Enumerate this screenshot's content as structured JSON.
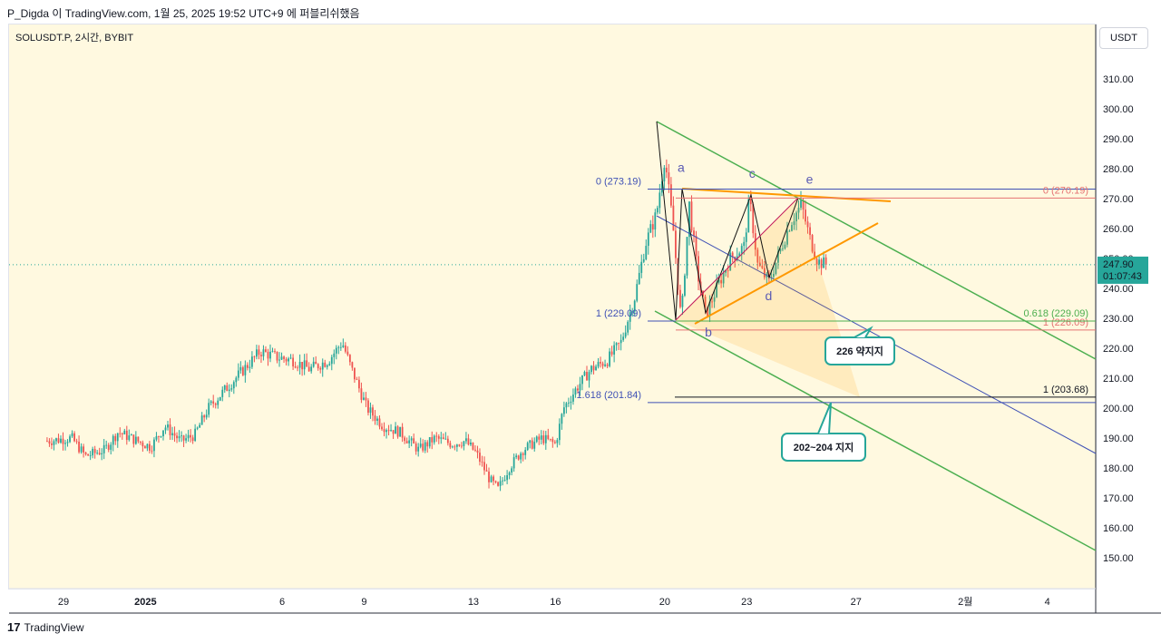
{
  "header": {
    "text": "P_Digda 이 TradingView.com, 1월 25, 2025 19:52 UTC+9 에 퍼블리쉬했음"
  },
  "symbol": "SOLUSDT.P, 2시간, BYBIT",
  "currency": "USDT",
  "footer": {
    "brand": "TradingView",
    "logo_glyph": "17"
  },
  "price_box": {
    "price": "247.90",
    "timer": "01:07:43",
    "color": "#26a69a"
  },
  "colors": {
    "up": "#26a69a",
    "down": "#ef5350",
    "bg": "#fff9e0",
    "channel": "#4caf50",
    "fib_blue": "#3f51b5",
    "fib_red": "#e57373",
    "orange": "#ff9800",
    "callout": "#26a69a"
  },
  "chart_data": {
    "type": "candlestick",
    "y_axis": {
      "min": 140,
      "max": 320,
      "ticks": [
        "150.00",
        "160.00",
        "170.00",
        "180.00",
        "190.00",
        "200.00",
        "210.00",
        "220.00",
        "230.00",
        "240.00",
        "250.00",
        "260.00",
        "270.00",
        "280.00",
        "290.00",
        "300.00",
        "310.00"
      ]
    },
    "x_axis": {
      "ticks": [
        {
          "label": "29",
          "day": 0
        },
        {
          "label": "2025",
          "day": 3
        },
        {
          "label": "6",
          "day": 8
        },
        {
          "label": "9",
          "day": 11
        },
        {
          "label": "13",
          "day": 15
        },
        {
          "label": "16",
          "day": 18
        },
        {
          "label": "20",
          "day": 22
        },
        {
          "label": "23",
          "day": 25
        },
        {
          "label": "27",
          "day": 29
        },
        {
          "label": "2월",
          "day": 33
        },
        {
          "label": "4",
          "day": 36
        }
      ]
    },
    "close_path": [
      [
        -0.6,
        189
      ],
      [
        0.3,
        190
      ],
      [
        0.8,
        184
      ],
      [
        1.5,
        186
      ],
      [
        2,
        192
      ],
      [
        2.7,
        189
      ],
      [
        3.2,
        187
      ],
      [
        3.7,
        194
      ],
      [
        4.3,
        189
      ],
      [
        4.8,
        191
      ],
      [
        5.3,
        200
      ],
      [
        6,
        207
      ],
      [
        6.7,
        214
      ],
      [
        7.2,
        219
      ],
      [
        7.8,
        217
      ],
      [
        8.4,
        216
      ],
      [
        9,
        213
      ],
      [
        9.7,
        216
      ],
      [
        10.2,
        222
      ],
      [
        10.5,
        214
      ],
      [
        11.1,
        200
      ],
      [
        11.7,
        194
      ],
      [
        12.3,
        192
      ],
      [
        13,
        186
      ],
      [
        13.6,
        190
      ],
      [
        14.2,
        188
      ],
      [
        14.7,
        189
      ],
      [
        15.1,
        185
      ],
      [
        15.6,
        176
      ],
      [
        15.9,
        173
      ],
      [
        16.3,
        180
      ],
      [
        16.8,
        186
      ],
      [
        17.5,
        190
      ],
      [
        18,
        188
      ],
      [
        18.3,
        200
      ],
      [
        18.8,
        207
      ],
      [
        19.3,
        213
      ],
      [
        19.9,
        216
      ],
      [
        20.4,
        222
      ],
      [
        20.9,
        237
      ],
      [
        21.3,
        255
      ],
      [
        21.7,
        265
      ],
      [
        22,
        284
      ],
      [
        22.3,
        261
      ],
      [
        22.6,
        229
      ],
      [
        22.9,
        268
      ],
      [
        23.2,
        245
      ],
      [
        23.5,
        231
      ],
      [
        23.9,
        240
      ],
      [
        24.4,
        250
      ],
      [
        24.9,
        254
      ],
      [
        25.1,
        270
      ],
      [
        25.4,
        248
      ],
      [
        25.8,
        242
      ],
      [
        26.2,
        252
      ],
      [
        26.6,
        262
      ],
      [
        27,
        268
      ],
      [
        27.3,
        257
      ],
      [
        27.6,
        249
      ],
      [
        27.9,
        248
      ]
    ],
    "current_price": 247.9,
    "fib_levels": [
      {
        "label": "0 (273.19)",
        "price": 273.19,
        "color": "#3f51b5"
      },
      {
        "label": "1 (229.09)",
        "price": 229.09,
        "color": "#3f51b5"
      },
      {
        "label": "1.618 (201.84)",
        "price": 201.84,
        "color": "#3f51b5"
      },
      {
        "label": "0 (270.19)",
        "price": 270.19,
        "color": "#e57373"
      },
      {
        "label": "1 (226.09)",
        "price": 226.09,
        "color": "#e57373"
      },
      {
        "label": "0.618 (229.09)",
        "price": 229.09,
        "color": "#4caf50"
      },
      {
        "label": "1 (203.68)",
        "price": 203.68,
        "color": "#131722"
      }
    ],
    "wave_labels": [
      {
        "text": "a",
        "day": 22.6,
        "price": 279
      },
      {
        "text": "b",
        "day": 23.6,
        "price": 224
      },
      {
        "text": "c",
        "day": 25.2,
        "price": 277
      },
      {
        "text": "d",
        "day": 25.8,
        "price": 236
      },
      {
        "text": "e",
        "day": 27.3,
        "price": 275
      }
    ],
    "annotations": [
      {
        "text": "226 약지지",
        "price": 226
      },
      {
        "text": "202~204 지지",
        "price": 203
      }
    ]
  }
}
